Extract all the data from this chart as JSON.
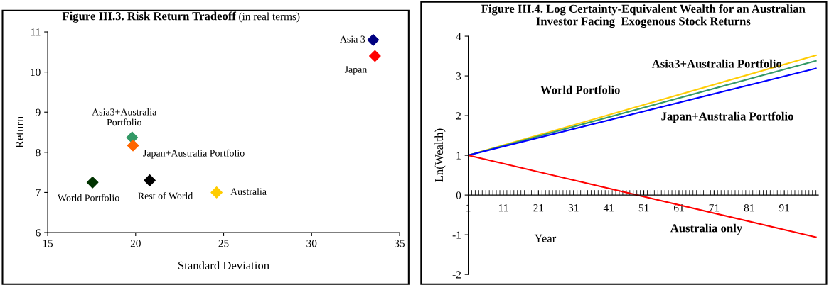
{
  "chart_data": [
    {
      "type": "scatter",
      "title": "Figure III.3. Risk Return Tradeoff",
      "subtitle": "(in real terms)",
      "xlabel": "Standard Deviation",
      "ylabel": "Return",
      "marker": "diamond",
      "legend": false,
      "grid": false,
      "xlim": [
        15,
        35
      ],
      "xticks": [
        15,
        20,
        25,
        30,
        35
      ],
      "ylim": [
        6,
        11
      ],
      "yticks": [
        6,
        7,
        8,
        9,
        10,
        11
      ],
      "series": [
        {
          "name": "Asia 3",
          "color": "#000080",
          "x": [
            33.5
          ],
          "values": [
            10.8
          ]
        },
        {
          "name": "Japan",
          "color": "#ff0000",
          "x": [
            33.6
          ],
          "values": [
            10.4
          ]
        },
        {
          "name": "Asia3+Australia\nPortfolio",
          "color": "#339966",
          "x": [
            19.8
          ],
          "values": [
            8.37
          ]
        },
        {
          "name": "Japan+Australia Portfolio",
          "color": "#ff6600",
          "x": [
            19.85
          ],
          "values": [
            8.17
          ]
        },
        {
          "name": "World Portfolio",
          "color": "#003300",
          "x": [
            17.55
          ],
          "values": [
            7.25
          ]
        },
        {
          "name": "Rest of World",
          "color": "#000000",
          "x": [
            20.8
          ],
          "values": [
            7.3
          ]
        },
        {
          "name": "Australia",
          "color": "#ffcc00",
          "x": [
            24.6
          ],
          "values": [
            7.0
          ]
        }
      ]
    },
    {
      "type": "line",
      "title": "Figure III.4. Log Certainty-Equivalent Wealth for an Australian\nInvestor Facing  Exogenous Stock Returns",
      "xlabel": "Year",
      "ylabel": "Ln(Wealth)",
      "legend": false,
      "grid": false,
      "marker": "none",
      "line_style": "solid",
      "xlim": [
        1,
        100.7
      ],
      "xticks": [
        1,
        11,
        21,
        31,
        41,
        51,
        61,
        71,
        81,
        91
      ],
      "ylim": [
        -2,
        4
      ],
      "yticks": [
        -2,
        -1,
        0,
        1,
        2,
        3,
        4
      ],
      "series": [
        {
          "name": "World Portfolio",
          "color": "#ffcc00",
          "x": [
            1,
            100
          ],
          "values": [
            1,
            3.52
          ]
        },
        {
          "name": "Asia3+Australia Portfolio",
          "color": "#339966",
          "x": [
            1,
            100
          ],
          "values": [
            1,
            3.38
          ]
        },
        {
          "name": "Japan+Australia Portfolio",
          "color": "#0000ff",
          "x": [
            1,
            100
          ],
          "values": [
            1,
            3.19
          ]
        },
        {
          "name": "Australia only",
          "color": "#ff0000",
          "x": [
            1,
            100
          ],
          "values": [
            1,
            -1.06
          ]
        }
      ]
    }
  ]
}
